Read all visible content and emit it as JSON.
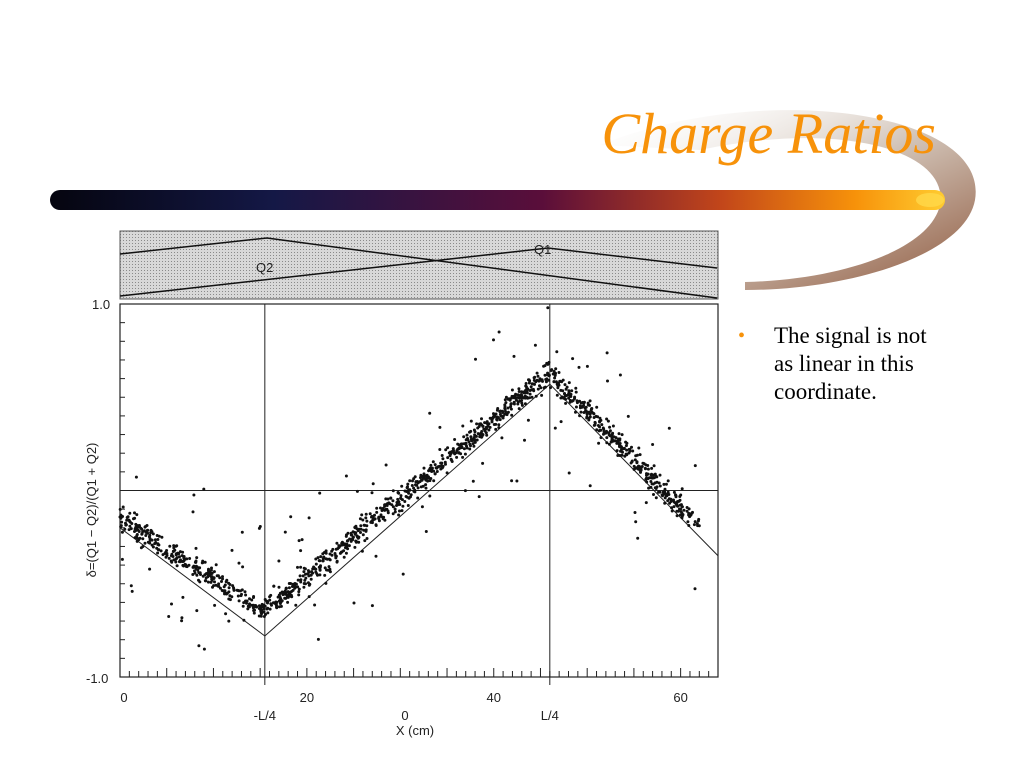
{
  "slide": {
    "title": "Charge Ratios",
    "bullets": [
      {
        "text": "The signal is not as linear in this coordinate."
      }
    ]
  },
  "colors": {
    "accent": "#f7920a",
    "bar_dark": "#0b0b1e"
  },
  "chart_data": {
    "type": "scatter",
    "top_panel_labels": [
      "Q2",
      "Q1"
    ],
    "ylabel": "δ=(Q1 − Q2)/(Q1 + Q2)",
    "xlabel": "X (cm)",
    "ylim": [
      -1.0,
      1.0
    ],
    "xlim": [
      0,
      64
    ],
    "y_tick_labels": [
      "1.0",
      "-1.0"
    ],
    "x_tick_labels": [
      "0",
      "20",
      "40",
      "60"
    ],
    "x_tick_values": [
      0,
      20,
      40,
      60
    ],
    "sub_tick_labels": [
      "-L/4",
      "0",
      "L/4"
    ],
    "sub_tick_values": [
      15.5,
      30.5,
      46
    ],
    "vertical_lines_x": [
      15.5,
      46
    ],
    "horizontal_line_y": 0,
    "ideal_line": [
      [
        0,
        -0.2
      ],
      [
        15.5,
        -0.78
      ],
      [
        46,
        0.57
      ],
      [
        64,
        -0.35
      ]
    ],
    "trend": [
      [
        0,
        -0.15
      ],
      [
        15.5,
        -0.65
      ],
      [
        46,
        0.63
      ],
      [
        62,
        -0.2
      ]
    ],
    "scatter_spread": 0.06,
    "outlier_count": 120
  }
}
